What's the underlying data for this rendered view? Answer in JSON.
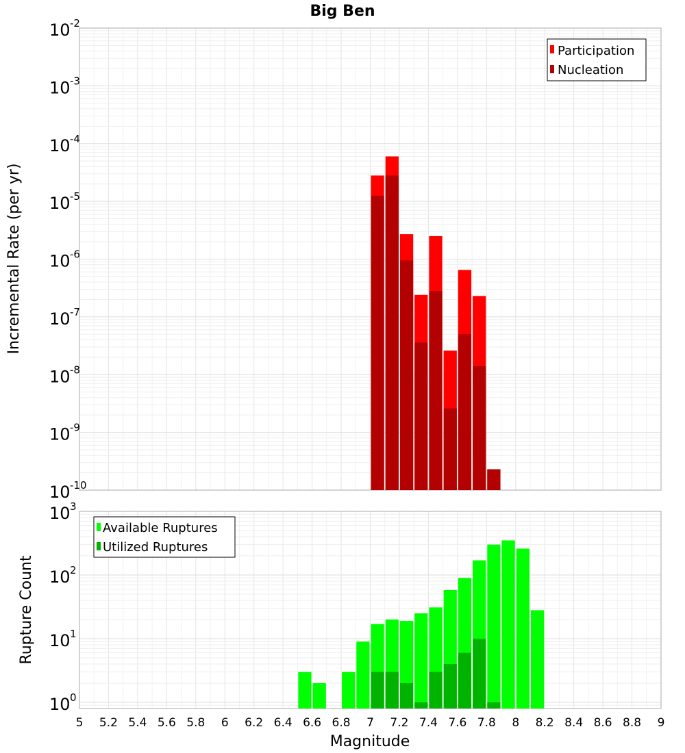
{
  "chart_data": [
    {
      "type": "bar",
      "title": "Big Ben",
      "ylabel": "Incremental Rate (per yr)",
      "yscale": "log",
      "ylim": [
        1e-10,
        0.01
      ],
      "xlim": [
        5,
        9
      ],
      "bar_width": 0.1,
      "grid": true,
      "legend_position": "top-right",
      "y_ticks": [
        {
          "base": "10",
          "exp": "-10",
          "value": 1e-10
        },
        {
          "base": "10",
          "exp": "-9",
          "value": 1e-09
        },
        {
          "base": "10",
          "exp": "-8",
          "value": 1e-08
        },
        {
          "base": "10",
          "exp": "-7",
          "value": 1e-07
        },
        {
          "base": "10",
          "exp": "-6",
          "value": 1e-06
        },
        {
          "base": "10",
          "exp": "-5",
          "value": 1e-05
        },
        {
          "base": "10",
          "exp": "-4",
          "value": 0.0001
        },
        {
          "base": "10",
          "exp": "-3",
          "value": 0.001
        },
        {
          "base": "10",
          "exp": "-2",
          "value": 0.01
        }
      ],
      "series": [
        {
          "name": "Participation",
          "color": "#ff0000",
          "x": [
            7.05,
            7.15,
            7.25,
            7.35,
            7.45,
            7.55,
            7.65,
            7.75,
            7.85
          ],
          "values": [
            2.8e-05,
            6e-05,
            2.7e-06,
            2.4e-07,
            2.5e-06,
            2.6e-08,
            6.5e-07,
            2.3e-07,
            2.3e-10
          ]
        },
        {
          "name": "Nucleation",
          "color": "#b30000",
          "x": [
            7.05,
            7.15,
            7.25,
            7.35,
            7.45,
            7.55,
            7.65,
            7.75,
            7.85
          ],
          "values": [
            1.25e-05,
            2.8e-05,
            9.5e-07,
            3.6e-08,
            2.8e-07,
            2.6e-09,
            5e-08,
            1.4e-08,
            2.3e-10
          ]
        }
      ]
    },
    {
      "type": "bar",
      "xlabel": "Magnitude",
      "ylabel": "Rupture Count",
      "yscale": "log",
      "ylim": [
        0.8,
        1000
      ],
      "xlim": [
        5,
        9
      ],
      "bar_width": 0.1,
      "grid": true,
      "legend_position": "top-left",
      "x_ticks": [
        "5",
        "5.2",
        "5.4",
        "5.6",
        "5.8",
        "6",
        "6.2",
        "6.4",
        "6.6",
        "6.8",
        "7",
        "7.2",
        "7.4",
        "7.6",
        "7.8",
        "8",
        "8.2",
        "8.4",
        "8.6",
        "8.8",
        "9"
      ],
      "y_ticks": [
        {
          "base": "10",
          "exp": "0",
          "value": 1
        },
        {
          "base": "10",
          "exp": "1",
          "value": 10
        },
        {
          "base": "10",
          "exp": "2",
          "value": 100
        },
        {
          "base": "10",
          "exp": "3",
          "value": 1000
        }
      ],
      "series": [
        {
          "name": "Available Ruptures",
          "color": "#00ff00",
          "x": [
            6.55,
            6.65,
            6.85,
            6.95,
            7.05,
            7.15,
            7.25,
            7.35,
            7.45,
            7.55,
            7.65,
            7.75,
            7.85,
            7.95,
            8.05,
            8.15
          ],
          "values": [
            3,
            2,
            3,
            9,
            17,
            20,
            19,
            25,
            31,
            58,
            90,
            170,
            300,
            350,
            260,
            28
          ]
        },
        {
          "name": "Utilized Ruptures",
          "color": "#00b300",
          "x": [
            7.05,
            7.15,
            7.25,
            7.35,
            7.45,
            7.55,
            7.65,
            7.75,
            7.85
          ],
          "values": [
            3,
            3,
            2,
            1,
            3,
            4,
            6,
            10,
            1
          ]
        }
      ]
    }
  ]
}
